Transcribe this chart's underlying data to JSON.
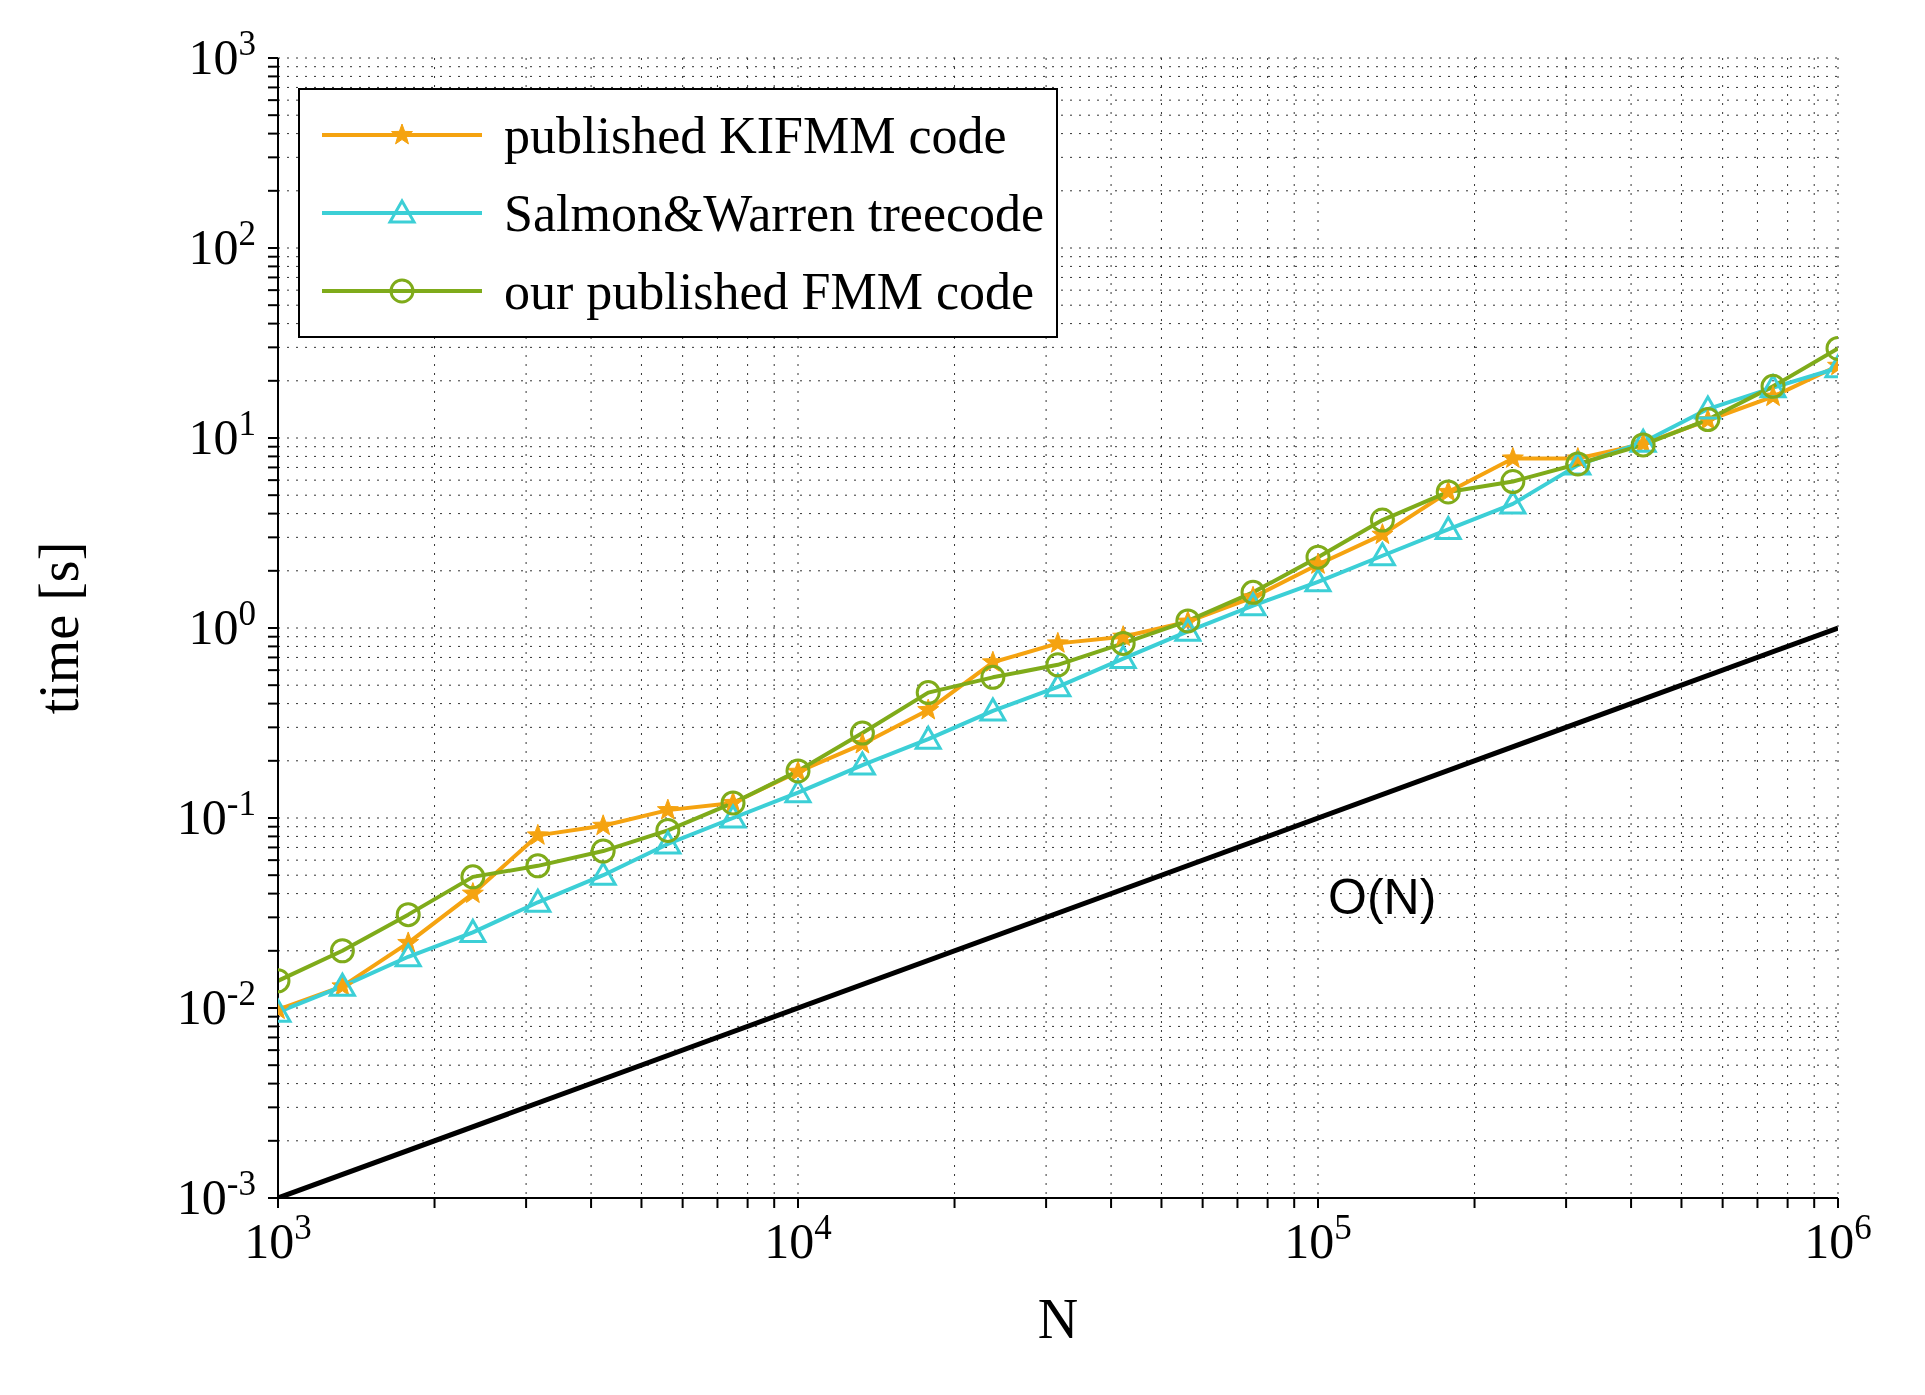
{
  "chart_data": {
    "type": "line",
    "xlabel": "N",
    "ylabel": "time [s]",
    "log": "xy",
    "grid": true,
    "legend": "top left",
    "line_style": "solid",
    "xlim": [
      1000,
      1000000
    ],
    "ylim": [
      0.001,
      1000
    ],
    "xticks": [
      {
        "value": 1000,
        "label": "10$^{3}$"
      },
      {
        "value": 2000,
        "label": null
      },
      {
        "value": 3000,
        "label": null
      },
      {
        "value": 4000,
        "label": null
      },
      {
        "value": 5000,
        "label": null
      },
      {
        "value": 6000,
        "label": null
      },
      {
        "value": 7000,
        "label": null
      },
      {
        "value": 8000,
        "label": null
      },
      {
        "value": 9000,
        "label": null
      },
      {
        "value": 10000,
        "label": "10$^{4}$"
      },
      {
        "value": 20000,
        "label": null
      },
      {
        "value": 30000,
        "label": null
      },
      {
        "value": 40000,
        "label": null
      },
      {
        "value": 50000,
        "label": null
      },
      {
        "value": 60000,
        "label": null
      },
      {
        "value": 70000,
        "label": null
      },
      {
        "value": 80000,
        "label": null
      },
      {
        "value": 90000,
        "label": null
      },
      {
        "value": 100000,
        "label": "10$^{5}$"
      },
      {
        "value": 200000,
        "label": null
      },
      {
        "value": 300000,
        "label": null
      },
      {
        "value": 400000,
        "label": null
      },
      {
        "value": 500000,
        "label": null
      },
      {
        "value": 600000,
        "label": null
      },
      {
        "value": 700000,
        "label": null
      },
      {
        "value": 800000,
        "label": null
      },
      {
        "value": 900000,
        "label": null
      },
      {
        "value": 1000000,
        "label": "10$^{6}$"
      }
    ],
    "yticks": [
      {
        "value": 0.001,
        "label": "10$^{-3}$"
      },
      {
        "value": 0.002,
        "label": null
      },
      {
        "value": 0.003,
        "label": null
      },
      {
        "value": 0.004,
        "label": null
      },
      {
        "value": 0.005,
        "label": null
      },
      {
        "value": 0.006,
        "label": null
      },
      {
        "value": 0.007,
        "label": null
      },
      {
        "value": 0.008,
        "label": null
      },
      {
        "value": 0.009,
        "label": null
      },
      {
        "value": 0.01,
        "label": "10$^{-2}$"
      },
      {
        "value": 0.02,
        "label": null
      },
      {
        "value": 0.03,
        "label": null
      },
      {
        "value": 0.04,
        "label": null
      },
      {
        "value": 0.05,
        "label": null
      },
      {
        "value": 0.06,
        "label": null
      },
      {
        "value": 0.07,
        "label": null
      },
      {
        "value": 0.08,
        "label": null
      },
      {
        "value": 0.09,
        "label": null
      },
      {
        "value": 0.1,
        "label": "10$^{-1}$"
      },
      {
        "value": 0.2,
        "label": null
      },
      {
        "value": 0.3,
        "label": null
      },
      {
        "value": 0.4,
        "label": null
      },
      {
        "value": 0.5,
        "label": null
      },
      {
        "value": 0.6,
        "label": null
      },
      {
        "value": 0.7,
        "label": null
      },
      {
        "value": 0.8,
        "label": null
      },
      {
        "value": 0.9,
        "label": null
      },
      {
        "value": 1,
        "label": "10$^{0}$"
      },
      {
        "value": 2,
        "label": null
      },
      {
        "value": 3,
        "label": null
      },
      {
        "value": 4,
        "label": null
      },
      {
        "value": 5,
        "label": null
      },
      {
        "value": 6,
        "label": null
      },
      {
        "value": 7,
        "label": null
      },
      {
        "value": 8,
        "label": null
      },
      {
        "value": 9,
        "label": null
      },
      {
        "value": 10,
        "label": "10$^{1}$"
      },
      {
        "value": 20,
        "label": null
      },
      {
        "value": 30,
        "label": null
      },
      {
        "value": 40,
        "label": null
      },
      {
        "value": 50,
        "label": null
      },
      {
        "value": 60,
        "label": null
      },
      {
        "value": 70,
        "label": null
      },
      {
        "value": 80,
        "label": null
      },
      {
        "value": 90,
        "label": null
      },
      {
        "value": 100,
        "label": "10$^{2}$"
      },
      {
        "value": 200,
        "label": null
      },
      {
        "value": 300,
        "label": null
      },
      {
        "value": 400,
        "label": null
      },
      {
        "value": 500,
        "label": null
      },
      {
        "value": 600,
        "label": null
      },
      {
        "value": 700,
        "label": null
      },
      {
        "value": 800,
        "label": null
      },
      {
        "value": 900,
        "label": null
      },
      {
        "value": 1000,
        "label": "10$^{3}$"
      }
    ],
    "x": [
      1000,
      1330,
      1780,
      2370,
      3160,
      4220,
      5620,
      7500,
      10000,
      13300,
      17800,
      23700,
      31600,
      42200,
      56200,
      75000,
      100000,
      133000,
      178000,
      237000,
      316000,
      422000,
      562000,
      750000,
      1000000
    ],
    "series": [
      {
        "name": "published KIFMM code",
        "color": "#f5a310",
        "marker": "star",
        "values": [
          0.0098,
          0.013,
          0.022,
          0.04,
          0.081,
          0.091,
          0.11,
          0.12,
          0.175,
          0.245,
          0.37,
          0.66,
          0.83,
          0.9,
          1.08,
          1.45,
          2.16,
          3.1,
          5.2,
          7.8,
          7.8,
          9.3,
          12.4,
          16.5,
          24
        ]
      },
      {
        "name": "Salmon&Warren treecode",
        "color": "#3ccfd6",
        "marker": "triangle",
        "values": [
          0.0095,
          0.013,
          0.0186,
          0.025,
          0.036,
          0.05,
          0.073,
          0.1,
          0.136,
          0.19,
          0.26,
          0.366,
          0.49,
          0.69,
          0.96,
          1.31,
          1.75,
          2.4,
          3.3,
          4.5,
          7.2,
          9.5,
          14.2,
          18.4,
          23.4
        ]
      },
      {
        "name": "our published FMM code",
        "color": "#7fab1a",
        "marker": "circle",
        "values": [
          0.0139,
          0.02,
          0.031,
          0.049,
          0.056,
          0.067,
          0.086,
          0.12,
          0.177,
          0.28,
          0.457,
          0.55,
          0.64,
          0.83,
          1.09,
          1.54,
          2.36,
          3.7,
          5.2,
          5.9,
          7.3,
          9.2,
          12.5,
          18.7,
          29.6
        ]
      },
      {
        "color": "#000000",
        "marker": "none",
        "x": [
          1000,
          1000000
        ],
        "values": [
          0.001,
          1
        ]
      }
    ],
    "annotations": [
      "O(N)"
    ]
  }
}
